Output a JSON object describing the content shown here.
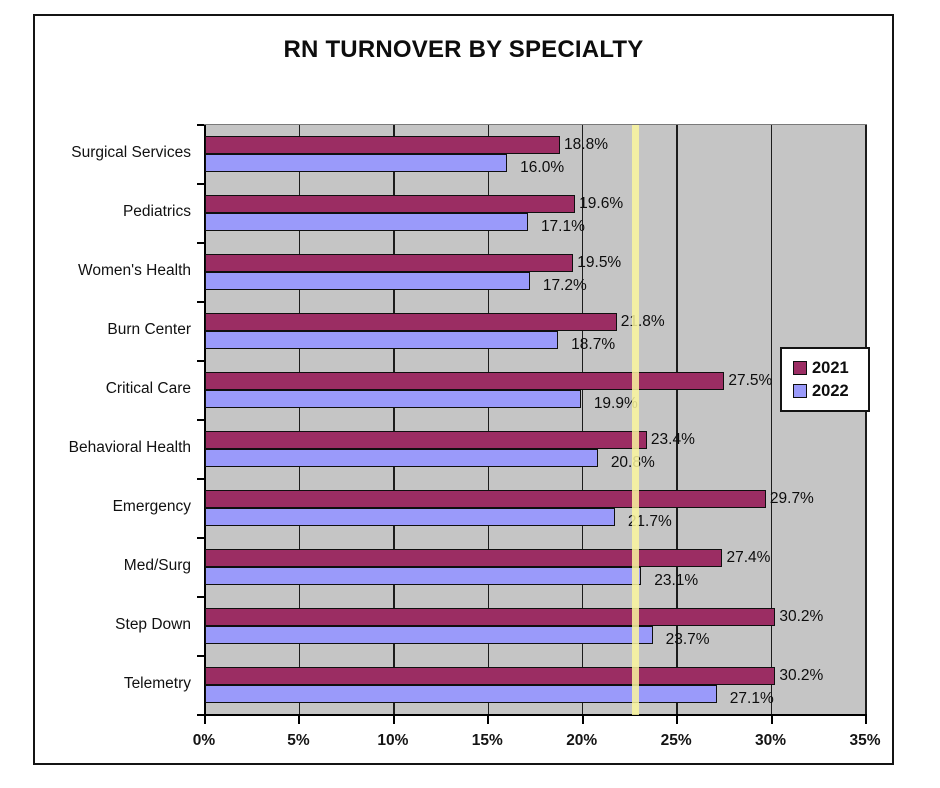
{
  "chart_data": {
    "type": "bar",
    "orientation": "horizontal",
    "title": "RN TURNOVER BY SPECIALTY",
    "categories": [
      "Surgical Services",
      "Pediatrics",
      "Women's Health",
      "Burn Center",
      "Critical Care",
      "Behavioral Health",
      "Emergency",
      "Med/Surg",
      "Step Down",
      "Telemetry"
    ],
    "series": [
      {
        "name": "2021",
        "color": "#9B2D63",
        "values": [
          18.8,
          19.6,
          19.5,
          21.8,
          27.5,
          23.4,
          29.7,
          27.4,
          30.2,
          30.2
        ]
      },
      {
        "name": "2022",
        "color": "#9A9AFA",
        "values": [
          16.0,
          17.1,
          17.2,
          18.7,
          19.9,
          20.8,
          21.7,
          23.1,
          23.7,
          27.1
        ]
      }
    ],
    "value_label_format": "percent_one_decimal",
    "x_axis": {
      "min": 0,
      "max": 35,
      "step": 5,
      "tick_labels": [
        "0%",
        "5%",
        "10%",
        "15%",
        "20%",
        "25%",
        "30%",
        "35%"
      ]
    },
    "reference_line": {
      "value": 22.8,
      "color": "rgba(250,246,158,0.85)"
    },
    "legend": {
      "position": "middle-right",
      "entries": [
        {
          "label": "2021",
          "color": "#9B2D63"
        },
        {
          "label": "2022",
          "color": "#9A9AFA"
        }
      ]
    },
    "style": {
      "plot_background": "#C5C5C5",
      "gridlines": true,
      "bar_border": "#0f0f0f"
    }
  }
}
